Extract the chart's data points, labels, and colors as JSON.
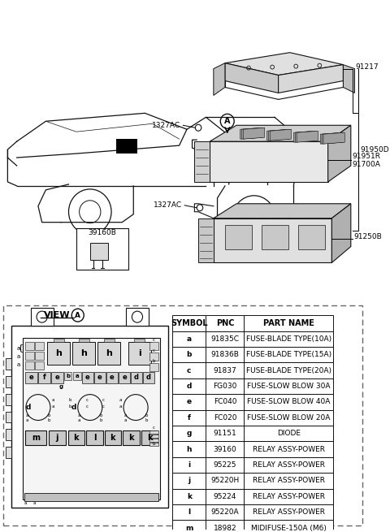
{
  "bg_color": "#ffffff",
  "table_headers": [
    "SYMBOL",
    "PNC",
    "PART NAME"
  ],
  "table_rows": [
    [
      "a",
      "91835C",
      "FUSE-BLADE TYPE(10A)"
    ],
    [
      "b",
      "91836B",
      "FUSE-BLADE TYPE(15A)"
    ],
    [
      "c",
      "91837",
      "FUSE-BLADE TYPE(20A)"
    ],
    [
      "d",
      "FG030",
      "FUSE-SLOW BLOW 30A"
    ],
    [
      "e",
      "FC040",
      "FUSE-SLOW BLOW 40A"
    ],
    [
      "f",
      "FC020",
      "FUSE-SLOW BLOW 20A"
    ],
    [
      "g",
      "91151",
      "DIODE"
    ],
    [
      "h",
      "39160",
      "RELAY ASSY-POWER"
    ],
    [
      "i",
      "95225",
      "RELAY ASSY-POWER"
    ],
    [
      "j",
      "95220H",
      "RELAY ASSY-POWER"
    ],
    [
      "k",
      "95224",
      "RELAY ASSY-POWER"
    ],
    [
      "l",
      "95220A",
      "RELAY ASSY-POWER"
    ],
    [
      "m",
      "18982",
      "MIDIFUSE-150A (M6)"
    ]
  ],
  "lc": "#111111",
  "gray1": "#c8c8c8",
  "gray2": "#e0e0e0",
  "gray3": "#a8a8a8"
}
